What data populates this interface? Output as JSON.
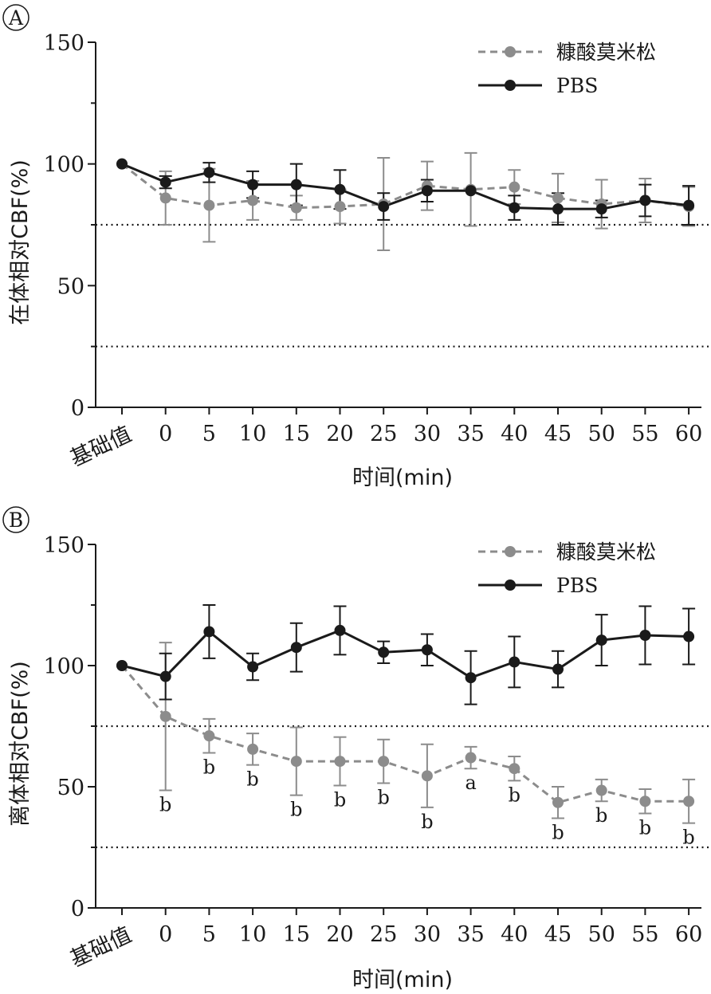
{
  "panels": [
    {
      "letter": "A",
      "ylabel": "在体相对CBF(%)",
      "xlabel": "时间(min)",
      "chart_data": {
        "type": "line",
        "categories": [
          "基础值",
          "0",
          "5",
          "10",
          "15",
          "20",
          "25",
          "30",
          "35",
          "40",
          "45",
          "50",
          "55",
          "60"
        ],
        "ylim": [
          0,
          150
        ],
        "yticks": [
          0,
          50,
          100,
          150
        ],
        "reference_lines": [
          75,
          25
        ],
        "legend_position": "top-right",
        "series": [
          {
            "name": "糠酸莫米松",
            "color": "#8c8c8c",
            "dashed": true,
            "values": [
              100,
              86,
              83,
              85,
              82,
              82.5,
              83.5,
              91,
              89.5,
              90.5,
              86,
              83.5,
              85,
              82.5
            ],
            "errors": [
              0,
              11,
              15,
              8,
              5,
              7,
              19,
              10,
              15,
              7,
              10,
              10,
              9,
              8
            ],
            "annotations": []
          },
          {
            "name": "PBS",
            "color": "#1a1a1a",
            "dashed": false,
            "values": [
              100,
              92.5,
              96.5,
              91.5,
              91.5,
              89.5,
              82.5,
              89,
              89,
              82,
              81.5,
              81.5,
              85,
              83
            ],
            "errors": [
              0,
              2.5,
              4,
              5.5,
              8.5,
              8,
              5.5,
              4.5,
              0,
              5,
              6.5,
              3.5,
              6.5,
              8
            ],
            "annotations": []
          }
        ]
      }
    },
    {
      "letter": "B",
      "ylabel": "离体相对CBF(%)",
      "xlabel": "时间(min)",
      "chart_data": {
        "type": "line",
        "categories": [
          "基础值",
          "0",
          "5",
          "10",
          "15",
          "20",
          "25",
          "30",
          "35",
          "40",
          "45",
          "50",
          "55",
          "60"
        ],
        "ylim": [
          0,
          150
        ],
        "yticks": [
          0,
          50,
          100,
          150
        ],
        "reference_lines": [
          75,
          25
        ],
        "legend_position": "top-right",
        "series": [
          {
            "name": "糠酸莫米松",
            "color": "#8c8c8c",
            "dashed": true,
            "values": [
              100,
              79,
              71,
              65.5,
              60.5,
              60.5,
              60.5,
              54.5,
              62,
              57.5,
              43.5,
              48.5,
              44,
              44
            ],
            "errors": [
              0,
              30.5,
              7,
              6.5,
              14,
              10,
              9,
              13,
              4.5,
              5,
              6.5,
              4.5,
              5,
              9
            ],
            "annotations": [
              "",
              "b",
              "b",
              "b",
              "b",
              "b",
              "b",
              "b",
              "a",
              "b",
              "b",
              "b",
              "b",
              "b"
            ]
          },
          {
            "name": "PBS",
            "color": "#1a1a1a",
            "dashed": false,
            "values": [
              100,
              95.5,
              114,
              99.5,
              107.5,
              114.5,
              105.5,
              106.5,
              95,
              101.5,
              98.5,
              110.5,
              112.5,
              112
            ],
            "errors": [
              0,
              9.5,
              11,
              5.5,
              10,
              10,
              4.5,
              6.5,
              11,
              10.5,
              7.5,
              10.5,
              12,
              11.5
            ],
            "annotations": []
          }
        ]
      }
    }
  ]
}
